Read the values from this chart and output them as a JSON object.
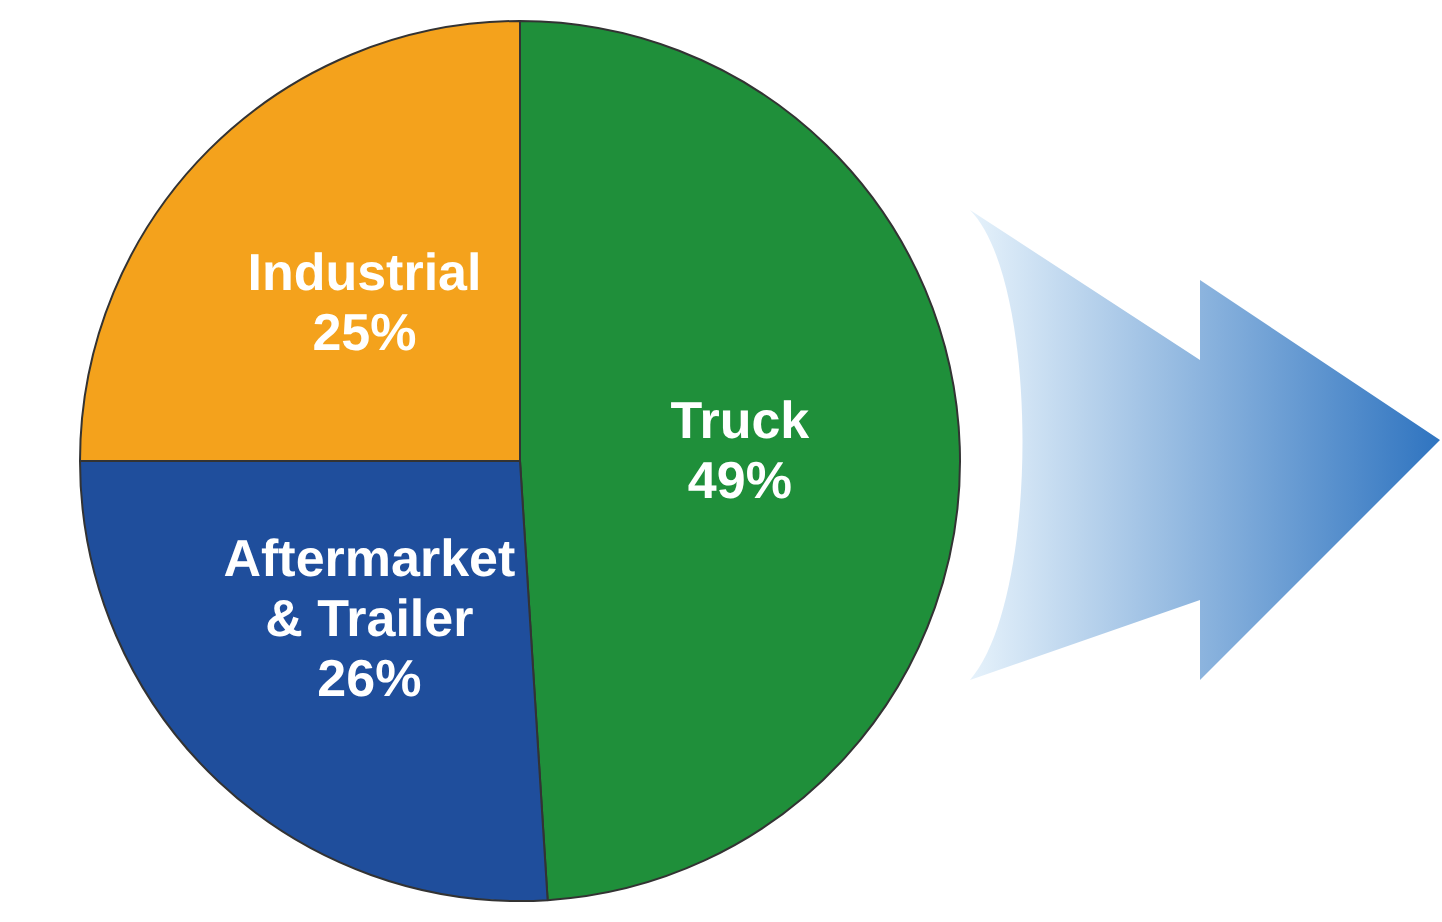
{
  "chart_data": {
    "type": "pie",
    "categories": [
      "Truck",
      "Aftermarket & Trailer",
      "Industrial"
    ],
    "values": [
      49,
      26,
      25
    ],
    "colors": [
      "#1f8f3a",
      "#1f4e9c",
      "#f4a21c"
    ],
    "value_labels": [
      "49%",
      "26%",
      "25%"
    ],
    "legend": false
  }
}
